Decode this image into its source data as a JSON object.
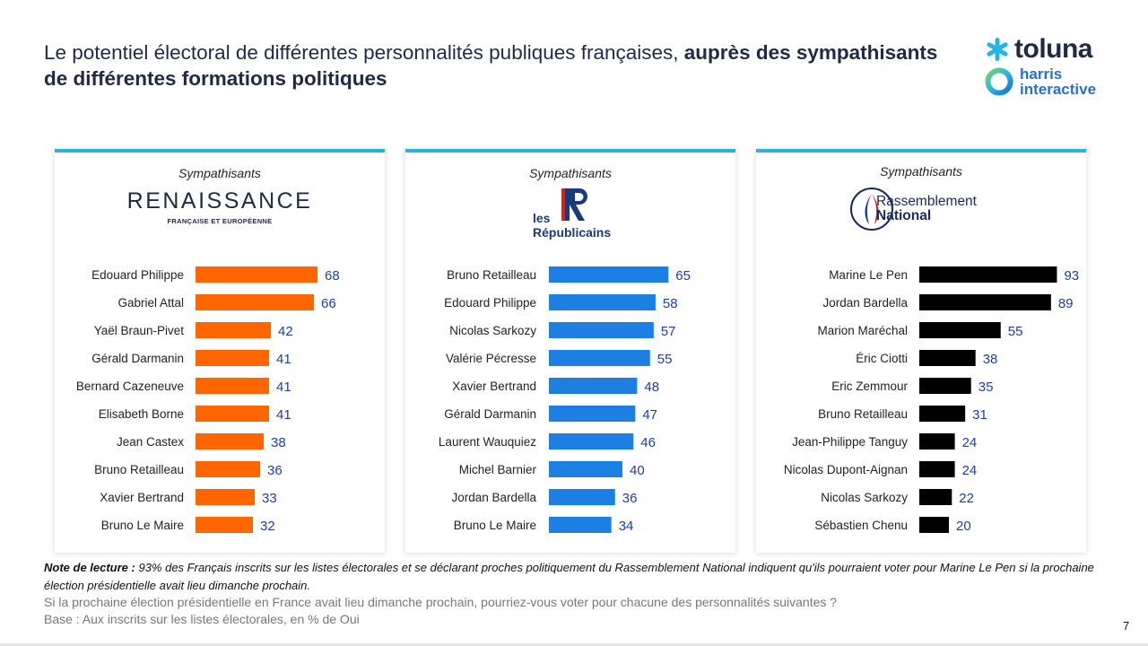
{
  "header": {
    "title_regular": "Le potentiel électoral de différentes personnalités publiques françaises, ",
    "title_bold": "auprès des sympathisants de différentes formations politiques"
  },
  "logos": {
    "toluna": "toluna",
    "harris_line1": "harris",
    "harris_line2": "interactive"
  },
  "chart_data": [
    {
      "type": "bar",
      "orientation": "horizontal",
      "subtitle": "Sympathisants",
      "party_logo_text": "RENAISSANCE",
      "party_logo_subtext": "FRANÇAISE ET EUROPÉENNE",
      "color": "#ff6600",
      "xlim": [
        0,
        100
      ],
      "categories": [
        "Edouard Philippe",
        "Gabriel Attal",
        "Yaël Braun-Pivet",
        "Gérald Darmanin",
        "Bernard Cazeneuve",
        "Elisabeth Borne",
        "Jean Castex",
        "Bruno Retailleau",
        "Xavier Bertrand",
        "Bruno Le Maire"
      ],
      "values": [
        68,
        66,
        42,
        41,
        41,
        41,
        38,
        36,
        33,
        32
      ]
    },
    {
      "type": "bar",
      "orientation": "horizontal",
      "subtitle": "Sympathisants",
      "party_logo_text": "les Républicains",
      "color": "#1d7fe2",
      "xlim": [
        0,
        100
      ],
      "categories": [
        "Bruno Retailleau",
        "Edouard Philippe",
        "Nicolas Sarkozy",
        "Valérie Pécresse",
        "Xavier Bertrand",
        "Gérald Darmanin",
        "Laurent Wauquiez",
        "Michel Barnier",
        "Jordan Bardella",
        "Bruno Le Maire"
      ],
      "values": [
        65,
        58,
        57,
        55,
        48,
        47,
        46,
        40,
        36,
        34
      ]
    },
    {
      "type": "bar",
      "orientation": "horizontal",
      "subtitle": "Sympathisants",
      "party_logo_text_1": "Rassemblement",
      "party_logo_text_2": "National",
      "color": "#000000",
      "xlim": [
        0,
        100
      ],
      "categories": [
        "Marine Le Pen",
        "Jordan Bardella",
        "Marion Maréchal",
        "Éric Ciotti",
        "Eric Zemmour",
        "Bruno Retailleau",
        "Jean-Philippe Tanguy",
        "Nicolas Dupont-Aignan",
        "Nicolas Sarkozy",
        "Sébastien Chenu"
      ],
      "values": [
        93,
        89,
        55,
        38,
        35,
        31,
        24,
        24,
        22,
        20
      ]
    }
  ],
  "footer": {
    "note_label": "Note de lecture :",
    "note_text": " 93% des Français inscrits sur les listes électorales et se déclarant proches politiquement du Rassemblement National indiquent qu'ils pourraient voter pour Marine Le Pen si la prochaine élection présidentielle avait lieu dimanche prochain.",
    "question": "Si la prochaine élection présidentielle en France avait lieu dimanche prochain, pourriez-vous voter pour chacune des personnalités suivantes ?",
    "base": "Base : Aux inscrits sur les listes électorales, en % de Oui",
    "page_number": "7"
  },
  "colors": {
    "accent_line": "#27b4e0",
    "value_text": "#1e3fa0",
    "title": "#1f2a44"
  }
}
